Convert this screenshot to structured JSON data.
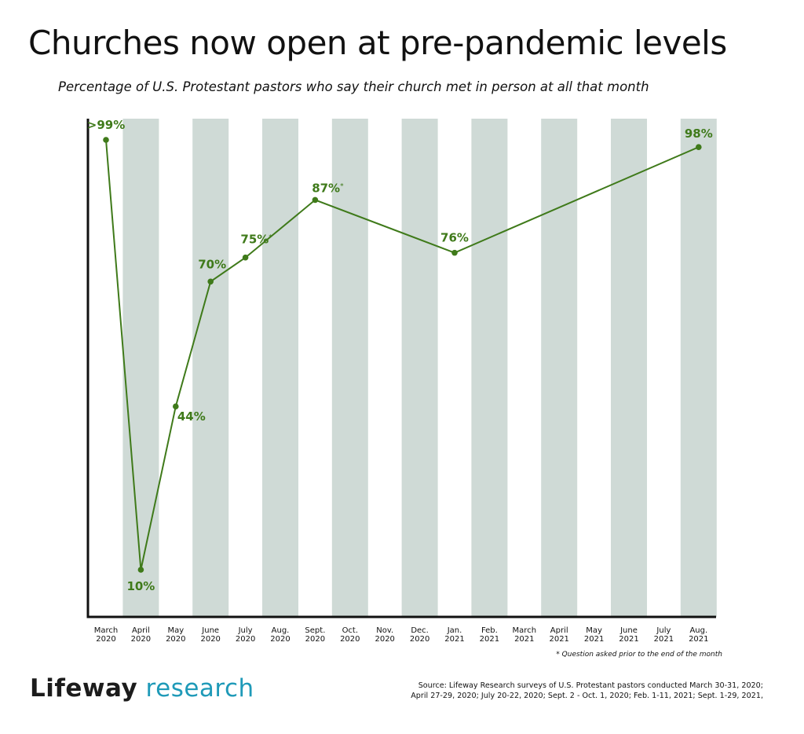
{
  "header": {
    "title": "Churches now open at pre-pandemic levels",
    "subtitle": "Percentage of U.S. Protestant pastors who say their church met in person at all that month"
  },
  "chart_data": {
    "type": "line",
    "categories": [
      [
        "March",
        "2020"
      ],
      [
        "April",
        "2020"
      ],
      [
        "May",
        "2020"
      ],
      [
        "June",
        "2020"
      ],
      [
        "July",
        "2020"
      ],
      [
        "Aug.",
        "2020"
      ],
      [
        "Sept.",
        "2020"
      ],
      [
        "Oct.",
        "2020"
      ],
      [
        "Nov.",
        "2020"
      ],
      [
        "Dec.",
        "2020"
      ],
      [
        "Jan.",
        "2021"
      ],
      [
        "Feb.",
        "2021"
      ],
      [
        "March",
        "2021"
      ],
      [
        "April",
        "2021"
      ],
      [
        "May",
        "2021"
      ],
      [
        "June",
        "2021"
      ],
      [
        "July",
        "2021"
      ],
      [
        "Aug.",
        "2021"
      ]
    ],
    "points": [
      {
        "category_index": 0,
        "value": 99.5,
        "label": ">99%",
        "asterisk": false
      },
      {
        "category_index": 1,
        "value": 10,
        "label": "10%",
        "asterisk": false
      },
      {
        "category_index": 2,
        "value": 44,
        "label": "44%",
        "asterisk": false
      },
      {
        "category_index": 3,
        "value": 70,
        "label": "70%",
        "asterisk": false
      },
      {
        "category_index": 4,
        "value": 75,
        "label": "75%",
        "asterisk": true
      },
      {
        "category_index": 6,
        "value": 87,
        "label": "87%",
        "asterisk": true
      },
      {
        "category_index": 10,
        "value": 76,
        "label": "76%",
        "asterisk": false
      },
      {
        "category_index": 17,
        "value": 98,
        "label": "98%",
        "asterisk": false
      }
    ],
    "ylim": [
      0,
      100
    ],
    "line_color": "#3f7a1a",
    "band_color": "#cfdad6",
    "asterisk_symbol": "*",
    "grid": false
  },
  "footnote": "* Question asked prior to the end of the month",
  "logo": {
    "brand": "Lifeway",
    "rest": " research"
  },
  "source": {
    "line1": "Source: Lifeway Research surveys of U.S. Protestant pastors conducted March 30-31, 2020;",
    "line2": "April 27-29, 2020; July 20-22, 2020; Sept. 2 - Oct. 1, 2020; Feb. 1-11, 2021; Sept. 1-29, 2021,"
  }
}
